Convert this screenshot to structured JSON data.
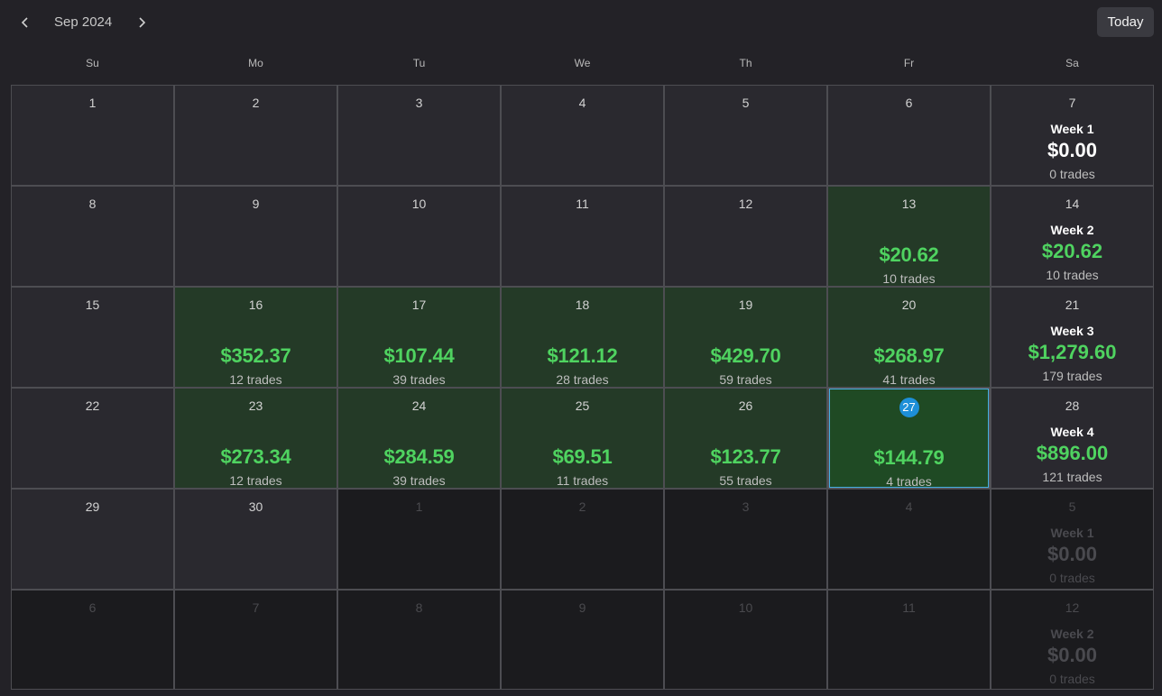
{
  "header": {
    "month_label": "Sep 2024",
    "today_label": "Today",
    "prev_icon": "chevron-left-icon",
    "next_icon": "chevron-right-icon"
  },
  "weekdays": [
    "Su",
    "Mo",
    "Tu",
    "We",
    "Th",
    "Fr",
    "Sa"
  ],
  "colors": {
    "profit": "#4fd360",
    "profit_cell": "#243a27",
    "today_border": "#45aee0",
    "today_badge": "#1d8fd8"
  },
  "weeks": [
    {
      "days": [
        {
          "day": "1",
          "state": "normal"
        },
        {
          "day": "2",
          "state": "normal"
        },
        {
          "day": "3",
          "state": "normal"
        },
        {
          "day": "4",
          "state": "normal"
        },
        {
          "day": "5",
          "state": "normal"
        },
        {
          "day": "6",
          "state": "normal"
        }
      ],
      "summary": {
        "day": "7",
        "week": "Week 1",
        "amount": "$0.00",
        "trades": "0 trades",
        "state": "normal"
      }
    },
    {
      "days": [
        {
          "day": "8",
          "state": "normal"
        },
        {
          "day": "9",
          "state": "normal"
        },
        {
          "day": "10",
          "state": "normal"
        },
        {
          "day": "11",
          "state": "normal"
        },
        {
          "day": "12",
          "state": "normal"
        },
        {
          "day": "13",
          "state": "profit",
          "amount": "$20.62",
          "trades": "10 trades"
        }
      ],
      "summary": {
        "day": "14",
        "week": "Week 2",
        "amount": "$20.62",
        "trades": "10 trades",
        "state": "positive"
      }
    },
    {
      "days": [
        {
          "day": "15",
          "state": "normal"
        },
        {
          "day": "16",
          "state": "profit",
          "amount": "$352.37",
          "trades": "12 trades"
        },
        {
          "day": "17",
          "state": "profit",
          "amount": "$107.44",
          "trades": "39 trades"
        },
        {
          "day": "18",
          "state": "profit",
          "amount": "$121.12",
          "trades": "28 trades"
        },
        {
          "day": "19",
          "state": "profit",
          "amount": "$429.70",
          "trades": "59 trades"
        },
        {
          "day": "20",
          "state": "profit",
          "amount": "$268.97",
          "trades": "41 trades"
        }
      ],
      "summary": {
        "day": "21",
        "week": "Week 3",
        "amount": "$1,279.60",
        "trades": "179 trades",
        "state": "positive"
      }
    },
    {
      "days": [
        {
          "day": "22",
          "state": "normal"
        },
        {
          "day": "23",
          "state": "profit",
          "amount": "$273.34",
          "trades": "12 trades"
        },
        {
          "day": "24",
          "state": "profit",
          "amount": "$284.59",
          "trades": "39 trades"
        },
        {
          "day": "25",
          "state": "profit",
          "amount": "$69.51",
          "trades": "11 trades"
        },
        {
          "day": "26",
          "state": "profit",
          "amount": "$123.77",
          "trades": "55 trades"
        },
        {
          "day": "27",
          "state": "today",
          "amount": "$144.79",
          "trades": "4 trades"
        }
      ],
      "summary": {
        "day": "28",
        "week": "Week 4",
        "amount": "$896.00",
        "trades": "121 trades",
        "state": "positive"
      }
    },
    {
      "days": [
        {
          "day": "29",
          "state": "normal"
        },
        {
          "day": "30",
          "state": "normal"
        },
        {
          "day": "1",
          "state": "outside"
        },
        {
          "day": "2",
          "state": "outside"
        },
        {
          "day": "3",
          "state": "outside"
        },
        {
          "day": "4",
          "state": "outside"
        }
      ],
      "summary": {
        "day": "5",
        "week": "Week 1",
        "amount": "$0.00",
        "trades": "0 trades",
        "state": "outside"
      }
    },
    {
      "days": [
        {
          "day": "6",
          "state": "outside"
        },
        {
          "day": "7",
          "state": "outside"
        },
        {
          "day": "8",
          "state": "outside"
        },
        {
          "day": "9",
          "state": "outside"
        },
        {
          "day": "10",
          "state": "outside"
        },
        {
          "day": "11",
          "state": "outside"
        }
      ],
      "summary": {
        "day": "12",
        "week": "Week 2",
        "amount": "$0.00",
        "trades": "0 trades",
        "state": "outside"
      }
    }
  ]
}
